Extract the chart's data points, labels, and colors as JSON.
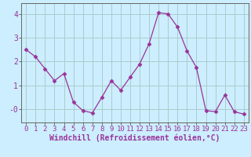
{
  "x": [
    0,
    1,
    2,
    3,
    4,
    5,
    6,
    7,
    8,
    9,
    10,
    11,
    12,
    13,
    14,
    15,
    16,
    17,
    18,
    19,
    20,
    21,
    22,
    23
  ],
  "y": [
    2.5,
    2.2,
    1.7,
    1.2,
    1.5,
    0.3,
    -0.05,
    -0.15,
    0.5,
    1.2,
    0.8,
    1.35,
    1.9,
    2.75,
    4.05,
    4.0,
    3.45,
    2.45,
    1.75,
    -0.05,
    -0.1,
    0.6,
    -0.1,
    -0.2
  ],
  "line_color": "#993399",
  "marker": "D",
  "marker_size": 2.5,
  "bg_color": "#cceeff",
  "grid_color": "#aacccc",
  "xlabel": "Windchill (Refroidissement éolien,°C)",
  "xlim": [
    -0.5,
    23.5
  ],
  "ylim": [
    -0.55,
    4.45
  ],
  "yticks": [
    0,
    1,
    2,
    3,
    4
  ],
  "ytick_labels": [
    "-0",
    "1",
    "2",
    "3",
    "4"
  ],
  "xticks": [
    0,
    1,
    2,
    3,
    4,
    5,
    6,
    7,
    8,
    9,
    10,
    11,
    12,
    13,
    14,
    15,
    16,
    17,
    18,
    19,
    20,
    21,
    22,
    23
  ],
  "tick_color": "#993399",
  "axis_color": "#666666",
  "font_size": 6.5,
  "xlabel_fontsize": 7
}
